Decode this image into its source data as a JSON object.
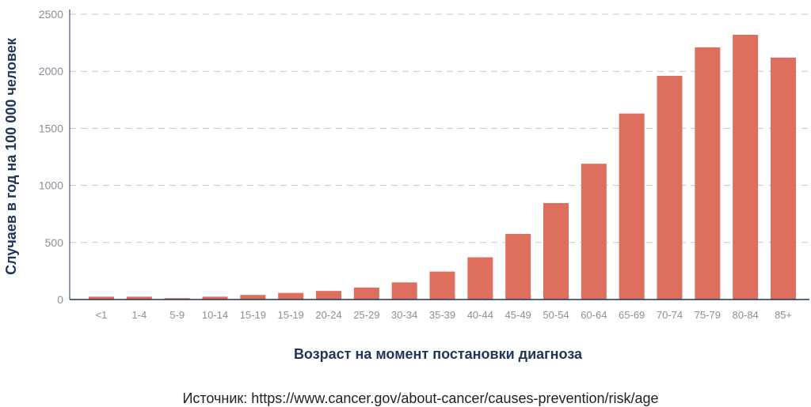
{
  "chart_data": {
    "type": "bar",
    "xlabel": "Возраст на момент постановки диагноза",
    "ylabel": "Случаев в год на 100 000 человек",
    "ylim": [
      0,
      2500
    ],
    "yticks": [
      0,
      500,
      1000,
      1500,
      2000,
      2500
    ],
    "grid": true,
    "bar_color": "#de6f5f",
    "categories": [
      "<1",
      "1-4",
      "5-9",
      "10-14",
      "15-19",
      "15-19",
      "20-24",
      "25-29",
      "30-34",
      "35-39",
      "40-44",
      "45-49",
      "50-54",
      "60-64",
      "65-69",
      "70-74",
      "75-79",
      "80-84",
      "85+"
    ],
    "values": [
      25,
      25,
      12,
      25,
      40,
      58,
      75,
      105,
      150,
      245,
      370,
      575,
      845,
      1190,
      1630,
      1960,
      2210,
      2320,
      2120
    ]
  },
  "source": {
    "text": "Источник: https://www.cancer.gov/about-cancer/causes-prevention/risk/age"
  }
}
